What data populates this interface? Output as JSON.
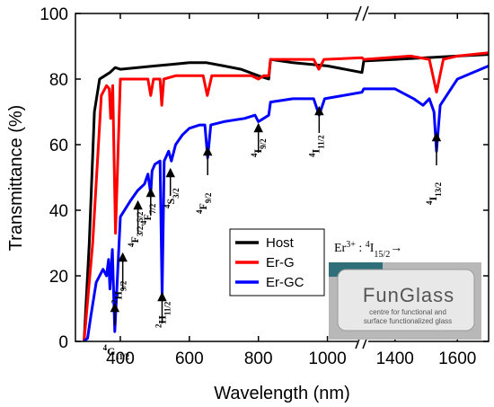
{
  "chart_data": {
    "type": "line",
    "xlabel": "Wavelength (nm)",
    "ylabel": "Transmittance (%)",
    "ylim": [
      0,
      100
    ],
    "x_segments": [
      {
        "range": [
          270,
          1100
        ],
        "ticks": [
          400,
          600,
          800,
          1000
        ]
      },
      {
        "range": [
          1300,
          1700
        ],
        "ticks": [
          1400,
          1600
        ]
      }
    ],
    "y_ticks": [
      0,
      20,
      40,
      60,
      80,
      100
    ],
    "legend": {
      "position": "center-right"
    },
    "series": [
      {
        "name": "Host",
        "color": "#000000",
        "x": [
          295,
          310,
          325,
          340,
          355,
          370,
          385,
          400,
          450,
          500,
          550,
          600,
          650,
          700,
          750,
          800,
          830,
          835,
          900,
          1000,
          1100,
          1300,
          1400,
          1500,
          1600,
          1700
        ],
        "y": [
          0,
          30,
          70,
          80,
          81,
          82,
          83.5,
          83,
          83.5,
          84,
          84.5,
          85,
          85,
          84,
          83,
          81,
          80,
          86,
          85,
          84,
          82,
          85.5,
          86,
          86.5,
          87,
          87.5
        ]
      },
      {
        "name": "Er-G",
        "color": "#ff0000",
        "x": [
          295,
          320,
          345,
          360,
          368,
          372,
          378,
          386,
          400,
          440,
          480,
          488,
          496,
          515,
          520,
          526,
          560,
          600,
          640,
          652,
          665,
          700,
          780,
          800,
          815,
          830,
          835,
          900,
          960,
          975,
          990,
          1100,
          1300,
          1450,
          1510,
          1533,
          1555,
          1600,
          1700
        ],
        "y": [
          0,
          30,
          75,
          78,
          77,
          68,
          78,
          33,
          80,
          80,
          80,
          75,
          80,
          80,
          72,
          80,
          81,
          81,
          81,
          75,
          81,
          81,
          81,
          80,
          81,
          81,
          86,
          86,
          86,
          83,
          86,
          86.5,
          86,
          87,
          86,
          76,
          86,
          87,
          88
        ]
      },
      {
        "name": "Er-GC",
        "color": "#0000ff",
        "x": [
          295,
          305,
          315,
          330,
          350,
          360,
          366,
          370,
          377,
          384,
          400,
          430,
          450,
          470,
          480,
          488,
          492,
          500,
          515,
          521,
          527,
          540,
          548,
          560,
          580,
          600,
          630,
          645,
          653,
          662,
          700,
          760,
          790,
          800,
          815,
          830,
          835,
          900,
          960,
          976,
          992,
          1100,
          1300,
          1400,
          1460,
          1490,
          1510,
          1525,
          1533,
          1545,
          1600,
          1700
        ],
        "y": [
          0,
          1,
          8,
          18,
          22,
          20,
          25,
          16,
          28,
          3,
          38,
          43,
          46,
          48,
          51,
          45,
          52,
          54,
          55,
          14,
          55,
          58,
          55,
          60,
          63,
          65,
          66,
          66,
          56,
          66,
          67,
          68,
          69,
          67,
          68,
          69,
          73,
          74,
          74,
          69,
          74,
          76,
          77,
          77,
          74,
          72,
          74,
          70,
          58,
          72,
          80,
          84
        ]
      }
    ],
    "transitions": [
      {
        "label": "4G11/2",
        "sup": "4",
        "main": "G",
        "sub": "11/2",
        "arrow_x": 384
      },
      {
        "label": "2H9/2",
        "sup": "2",
        "main": "H",
        "sub": "9/2",
        "arrow_x": 407
      },
      {
        "label": "4F3/2,5/2",
        "sup": "4",
        "main": "F",
        "sub": "3/2, 5/2",
        "arrow_x": 451
      },
      {
        "label": "4F7/2",
        "sup": "4",
        "main": "F",
        "sub": "7/2",
        "arrow_x": 488
      },
      {
        "label": "2H11/2",
        "sup": "2",
        "main": "H",
        "sub": "11/2",
        "arrow_x": 521
      },
      {
        "label": "4S3/2",
        "sup": "4",
        "main": "S",
        "sub": "3/2",
        "arrow_x": 545
      },
      {
        "label": "4F9/2",
        "sup": "4",
        "main": "F",
        "sub": "9/2",
        "arrow_x": 653
      },
      {
        "label": "4I9/2",
        "sup": "4",
        "main": "I",
        "sub": "9/2",
        "arrow_x": 800
      },
      {
        "label": "4I11/2",
        "sup": "4",
        "main": "I",
        "sub": "11/2",
        "arrow_x": 976
      },
      {
        "label": "4I13/2",
        "sup": "4",
        "main": "I",
        "sub": "13/2",
        "arrow_x": 1533
      }
    ],
    "annotation": {
      "text": "Er3+ : 4I15/2→",
      "base": "Er",
      "ion": "3+",
      "sep": " : ",
      "sup": "4",
      "main": "I",
      "sub": "15/2",
      "arrow": "→"
    },
    "inset_photo": {
      "line1": "FunGlass",
      "line2": "centre for functional and",
      "line3": "surface functionalized glass"
    }
  }
}
